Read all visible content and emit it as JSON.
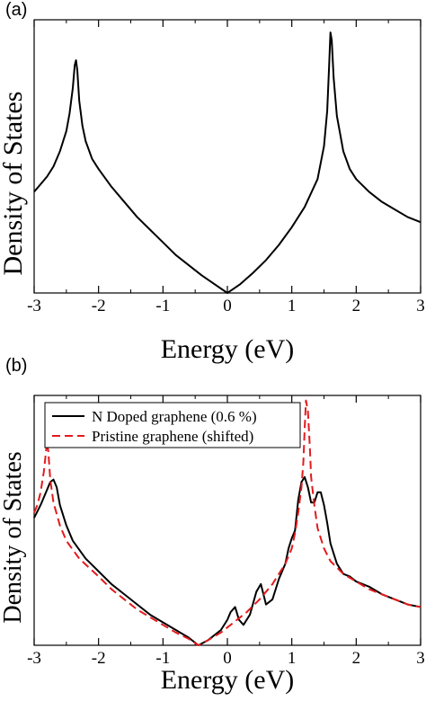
{
  "chart_data": [
    {
      "panel": "(a)",
      "type": "line",
      "xlabel": "Energy (eV)",
      "ylabel": "Density of States",
      "xlim": [
        -3,
        3
      ],
      "xticks": [
        "-3",
        "-2",
        "-1",
        "0",
        "1",
        "2",
        "3"
      ],
      "yticks": [],
      "series": [
        {
          "color": "#000000",
          "style": "solid",
          "x": [
            -3,
            -2.9,
            -2.8,
            -2.7,
            -2.6,
            -2.5,
            -2.45,
            -2.4,
            -2.37,
            -2.35,
            -2.33,
            -2.3,
            -2.25,
            -2.2,
            -2.1,
            -2.0,
            -1.8,
            -1.6,
            -1.4,
            -1.2,
            -1.0,
            -0.8,
            -0.6,
            -0.4,
            -0.2,
            0,
            0.2,
            0.4,
            0.6,
            0.8,
            1.0,
            1.2,
            1.4,
            1.5,
            1.55,
            1.58,
            1.6,
            1.62,
            1.65,
            1.7,
            1.8,
            1.9,
            2.0,
            2.2,
            2.4,
            2.6,
            2.8,
            3.0
          ],
          "y": [
            0.4,
            0.43,
            0.46,
            0.5,
            0.56,
            0.64,
            0.71,
            0.81,
            0.9,
            0.92,
            0.88,
            0.76,
            0.66,
            0.6,
            0.53,
            0.49,
            0.42,
            0.36,
            0.3,
            0.25,
            0.2,
            0.15,
            0.11,
            0.07,
            0.035,
            0.0,
            0.035,
            0.08,
            0.13,
            0.19,
            0.26,
            0.34,
            0.45,
            0.58,
            0.72,
            0.9,
            1.03,
            1.0,
            0.85,
            0.7,
            0.56,
            0.49,
            0.45,
            0.4,
            0.36,
            0.33,
            0.3,
            0.28
          ]
        }
      ]
    },
    {
      "panel": "(b)",
      "type": "line",
      "xlabel": "Energy (eV)",
      "ylabel": "Density of States",
      "xlim": [
        -3,
        3
      ],
      "xticks": [
        "-3",
        "-2",
        "-1",
        "0",
        "1",
        "2",
        "3"
      ],
      "yticks": [],
      "legend_position": "top-left",
      "series": [
        {
          "name": "N Doped graphene (0.6 %)",
          "color": "#000000",
          "style": "solid",
          "x": [
            -3,
            -2.9,
            -2.8,
            -2.75,
            -2.7,
            -2.65,
            -2.6,
            -2.5,
            -2.4,
            -2.2,
            -2.0,
            -1.8,
            -1.6,
            -1.4,
            -1.2,
            -1.0,
            -0.8,
            -0.6,
            -0.45,
            -0.3,
            -0.1,
            0.0,
            0.05,
            0.12,
            0.18,
            0.25,
            0.35,
            0.45,
            0.52,
            0.6,
            0.7,
            0.8,
            0.9,
            0.95,
            1.0,
            1.05,
            1.1,
            1.15,
            1.2,
            1.25,
            1.3,
            1.35,
            1.4,
            1.45,
            1.5,
            1.55,
            1.6,
            1.7,
            1.8,
            1.9,
            2.0,
            2.2,
            2.4,
            2.6,
            2.8,
            3.0
          ],
          "y": [
            0.5,
            0.55,
            0.61,
            0.64,
            0.65,
            0.62,
            0.55,
            0.47,
            0.41,
            0.34,
            0.29,
            0.24,
            0.2,
            0.16,
            0.12,
            0.09,
            0.06,
            0.03,
            0.0,
            0.02,
            0.06,
            0.1,
            0.13,
            0.15,
            0.1,
            0.08,
            0.12,
            0.21,
            0.24,
            0.16,
            0.18,
            0.26,
            0.32,
            0.38,
            0.42,
            0.45,
            0.57,
            0.64,
            0.66,
            0.62,
            0.56,
            0.56,
            0.6,
            0.6,
            0.55,
            0.48,
            0.4,
            0.32,
            0.28,
            0.27,
            0.25,
            0.23,
            0.2,
            0.18,
            0.16,
            0.15
          ]
        },
        {
          "name": "Pristine graphene (shifted)",
          "color": "#e41a1c",
          "style": "dashed",
          "x": [
            -3,
            -2.95,
            -2.9,
            -2.85,
            -2.82,
            -2.8,
            -2.78,
            -2.75,
            -2.7,
            -2.6,
            -2.5,
            -2.3,
            -2.0,
            -1.8,
            -1.6,
            -1.4,
            -1.2,
            -1.0,
            -0.8,
            -0.6,
            -0.45,
            -0.3,
            -0.1,
            0.1,
            0.3,
            0.5,
            0.7,
            0.9,
            1.0,
            1.05,
            1.1,
            1.15,
            1.18,
            1.2,
            1.22,
            1.25,
            1.28,
            1.3,
            1.35,
            1.4,
            1.5,
            1.6,
            1.8,
            2.0,
            2.2,
            2.4,
            2.6,
            2.8,
            3.0
          ],
          "y": [
            0.52,
            0.55,
            0.6,
            0.68,
            0.75,
            0.8,
            0.76,
            0.65,
            0.56,
            0.47,
            0.41,
            0.34,
            0.27,
            0.22,
            0.18,
            0.14,
            0.11,
            0.08,
            0.05,
            0.025,
            0.0,
            0.02,
            0.05,
            0.09,
            0.13,
            0.18,
            0.24,
            0.32,
            0.38,
            0.44,
            0.52,
            0.62,
            0.72,
            0.85,
            0.96,
            0.92,
            0.78,
            0.66,
            0.55,
            0.46,
            0.38,
            0.33,
            0.28,
            0.25,
            0.22,
            0.2,
            0.18,
            0.16,
            0.15
          ]
        }
      ]
    }
  ]
}
